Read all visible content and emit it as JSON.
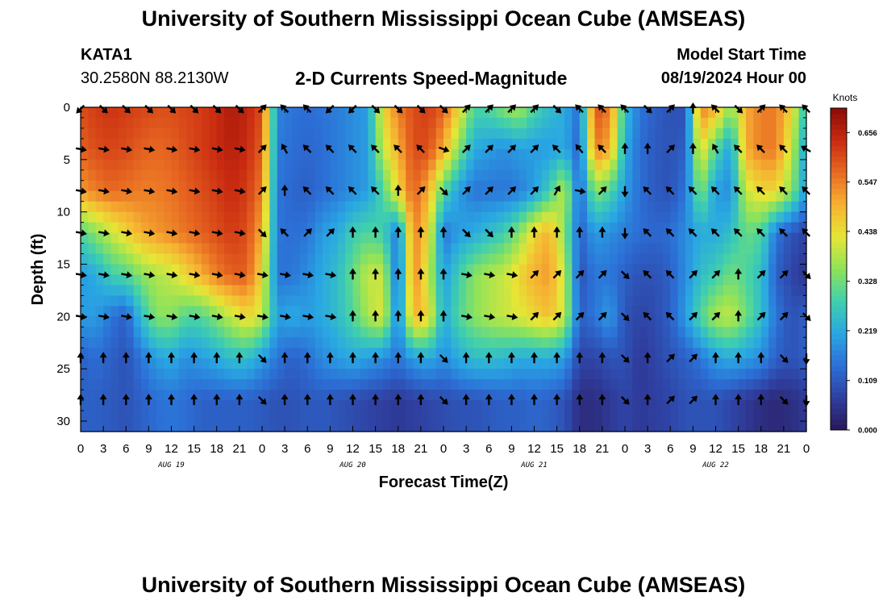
{
  "header": {
    "title_top": "University of Southern Mississippi Ocean Cube (AMSEAS)",
    "title_bottom": "University of Southern Mississippi Ocean Cube (AMSEAS)",
    "station": "KATA1",
    "coords": "30.2580N  88.2130W",
    "plot_title": "2-D Currents Speed-Magnitude",
    "model_start_label": "Model Start Time",
    "model_start_value": "08/19/2024 Hour 00"
  },
  "colors": {
    "colormap": [
      "#2a1858",
      "#2f3fa0",
      "#2c6fd6",
      "#29a7e3",
      "#3fcfae",
      "#8ee35a",
      "#e6e636",
      "#f6b232",
      "#e86a22",
      "#c92a10",
      "#8a0c06"
    ]
  },
  "chart_data": {
    "type": "heatmap",
    "title": "2-D Currents Speed-Magnitude",
    "xlabel": "Forecast Time(Z)",
    "ylabel": "Depth (ft)",
    "xlim": [
      0,
      96
    ],
    "ylim": [
      31,
      0
    ],
    "x_tick_labels": [
      "0",
      "3",
      "6",
      "9",
      "12",
      "15",
      "18",
      "21",
      "0",
      "3",
      "6",
      "9",
      "12",
      "15",
      "18",
      "21",
      "0",
      "3",
      "6",
      "9",
      "12",
      "15",
      "18",
      "21",
      "0",
      "3",
      "6",
      "9",
      "12",
      "15",
      "18",
      "21",
      "0"
    ],
    "date_labels": [
      {
        "label": "AUG 19",
        "hour": 12
      },
      {
        "label": "AUG 20",
        "hour": 36
      },
      {
        "label": "AUG 21",
        "hour": 60
      },
      {
        "label": "AUG 22",
        "hour": 84
      }
    ],
    "y_ticks": [
      0,
      5,
      10,
      15,
      20,
      25,
      30
    ],
    "y_tick_labels": [
      "0",
      "5",
      "10",
      "15",
      "20",
      "25",
      "30"
    ],
    "colorbar": {
      "label": "Knots",
      "min": 0,
      "max": 0.71,
      "tick_values": [
        0.0,
        0.109,
        0.219,
        0.328,
        0.438,
        0.547,
        0.656
      ],
      "tick_labels": [
        "0.000",
        "0.109",
        "0.219",
        "0.328",
        "0.438",
        "0.547",
        "0.656"
      ]
    },
    "depths": [
      0,
      4,
      8,
      12,
      16,
      20,
      24,
      28
    ],
    "hours": [
      0,
      2,
      4,
      6,
      8,
      10,
      12,
      14,
      16,
      18,
      20,
      22,
      24,
      26,
      28,
      30,
      32,
      34,
      36,
      38,
      40,
      42,
      44,
      46,
      48,
      50,
      52,
      54,
      56,
      58,
      60,
      62,
      64,
      66,
      68,
      70,
      72,
      74,
      76,
      78,
      80,
      82,
      84,
      86,
      88,
      90,
      92,
      94,
      96
    ],
    "speed": [
      [
        0.6,
        0.62,
        0.63,
        0.62,
        0.61,
        0.6,
        0.6,
        0.61,
        0.62,
        0.64,
        0.67,
        0.65,
        0.6,
        0.17,
        0.15,
        0.14,
        0.15,
        0.16,
        0.18,
        0.2,
        0.45,
        0.55,
        0.6,
        0.62,
        0.58,
        0.45,
        0.3,
        0.3,
        0.35,
        0.38,
        0.3,
        0.25,
        0.22,
        0.14,
        0.6,
        0.55,
        0.25,
        0.15,
        0.12,
        0.1,
        0.1,
        0.55,
        0.5,
        0.35,
        0.5,
        0.55,
        0.55,
        0.45,
        0.25
      ],
      [
        0.58,
        0.6,
        0.61,
        0.6,
        0.58,
        0.57,
        0.58,
        0.6,
        0.62,
        0.64,
        0.66,
        0.64,
        0.58,
        0.16,
        0.14,
        0.13,
        0.14,
        0.16,
        0.18,
        0.2,
        0.4,
        0.5,
        0.6,
        0.6,
        0.5,
        0.35,
        0.22,
        0.2,
        0.18,
        0.2,
        0.2,
        0.2,
        0.22,
        0.12,
        0.55,
        0.5,
        0.22,
        0.14,
        0.11,
        0.1,
        0.12,
        0.45,
        0.3,
        0.2,
        0.5,
        0.55,
        0.55,
        0.4,
        0.2
      ],
      [
        0.52,
        0.55,
        0.57,
        0.56,
        0.55,
        0.55,
        0.56,
        0.58,
        0.6,
        0.62,
        0.64,
        0.62,
        0.55,
        0.15,
        0.13,
        0.12,
        0.14,
        0.16,
        0.18,
        0.2,
        0.3,
        0.45,
        0.58,
        0.5,
        0.3,
        0.2,
        0.15,
        0.15,
        0.15,
        0.16,
        0.2,
        0.28,
        0.4,
        0.12,
        0.35,
        0.3,
        0.2,
        0.14,
        0.11,
        0.1,
        0.15,
        0.35,
        0.2,
        0.18,
        0.4,
        0.45,
        0.45,
        0.35,
        0.2
      ],
      [
        0.3,
        0.35,
        0.4,
        0.45,
        0.5,
        0.52,
        0.54,
        0.56,
        0.58,
        0.6,
        0.62,
        0.6,
        0.5,
        0.15,
        0.14,
        0.15,
        0.2,
        0.22,
        0.28,
        0.3,
        0.28,
        0.15,
        0.55,
        0.45,
        0.15,
        0.2,
        0.22,
        0.25,
        0.28,
        0.35,
        0.45,
        0.5,
        0.35,
        0.12,
        0.2,
        0.18,
        0.16,
        0.14,
        0.13,
        0.14,
        0.18,
        0.22,
        0.22,
        0.25,
        0.32,
        0.3,
        0.15,
        0.1,
        0.08
      ],
      [
        0.2,
        0.22,
        0.28,
        0.3,
        0.35,
        0.38,
        0.4,
        0.45,
        0.5,
        0.55,
        0.58,
        0.58,
        0.45,
        0.15,
        0.15,
        0.18,
        0.22,
        0.25,
        0.32,
        0.4,
        0.4,
        0.12,
        0.55,
        0.4,
        0.2,
        0.28,
        0.35,
        0.38,
        0.4,
        0.45,
        0.5,
        0.52,
        0.4,
        0.1,
        0.15,
        0.15,
        0.12,
        0.1,
        0.1,
        0.12,
        0.18,
        0.25,
        0.28,
        0.33,
        0.3,
        0.25,
        0.12,
        0.08,
        0.05
      ],
      [
        0.2,
        0.2,
        0.15,
        0.12,
        0.25,
        0.35,
        0.35,
        0.3,
        0.3,
        0.35,
        0.4,
        0.45,
        0.4,
        0.2,
        0.22,
        0.2,
        0.22,
        0.25,
        0.3,
        0.38,
        0.42,
        0.15,
        0.5,
        0.45,
        0.22,
        0.3,
        0.35,
        0.38,
        0.4,
        0.42,
        0.45,
        0.48,
        0.4,
        0.12,
        0.15,
        0.2,
        0.1,
        0.08,
        0.09,
        0.12,
        0.2,
        0.3,
        0.38,
        0.4,
        0.33,
        0.25,
        0.15,
        0.1,
        0.12
      ],
      [
        0.12,
        0.14,
        0.12,
        0.1,
        0.15,
        0.2,
        0.22,
        0.18,
        0.2,
        0.22,
        0.25,
        0.25,
        0.2,
        0.15,
        0.12,
        0.14,
        0.18,
        0.2,
        0.22,
        0.2,
        0.18,
        0.15,
        0.2,
        0.22,
        0.18,
        0.22,
        0.25,
        0.25,
        0.24,
        0.22,
        0.22,
        0.22,
        0.2,
        0.08,
        0.08,
        0.1,
        0.1,
        0.06,
        0.08,
        0.1,
        0.12,
        0.15,
        0.2,
        0.22,
        0.2,
        0.18,
        0.12,
        0.1,
        0.12
      ],
      [
        0.12,
        0.12,
        0.11,
        0.1,
        0.12,
        0.14,
        0.15,
        0.14,
        0.12,
        0.12,
        0.12,
        0.12,
        0.11,
        0.1,
        0.1,
        0.11,
        0.11,
        0.1,
        0.09,
        0.08,
        0.07,
        0.06,
        0.07,
        0.08,
        0.09,
        0.1,
        0.1,
        0.11,
        0.12,
        0.12,
        0.13,
        0.12,
        0.1,
        0.04,
        0.04,
        0.06,
        0.08,
        0.06,
        0.07,
        0.08,
        0.1,
        0.1,
        0.1,
        0.08,
        0.06,
        0.04,
        0.03,
        0.04,
        0.06
      ]
    ],
    "arrow_hours": [
      0,
      3,
      6,
      9,
      12,
      15,
      18,
      21,
      24,
      27,
      30,
      33,
      36,
      39,
      42,
      45,
      48,
      51,
      54,
      57,
      60,
      63,
      66,
      69,
      72,
      75,
      78,
      81,
      84,
      87,
      90,
      93,
      96
    ],
    "arrow_depths": [
      0,
      4,
      8,
      12,
      16,
      20,
      24,
      28
    ],
    "arrow_directions_deg": [
      [
        225,
        135,
        135,
        135,
        135,
        135,
        135,
        135,
        45,
        315,
        315,
        225,
        225,
        135,
        135,
        135,
        135,
        45,
        45,
        45,
        45,
        135,
        315,
        315,
        315,
        135,
        45,
        0,
        315,
        135,
        45,
        315,
        315
      ],
      [
        100,
        100,
        100,
        100,
        100,
        100,
        100,
        100,
        45,
        330,
        315,
        315,
        315,
        315,
        315,
        315,
        110,
        45,
        45,
        45,
        45,
        315,
        320,
        315,
        0,
        0,
        45,
        0,
        330,
        315,
        315,
        315,
        300
      ],
      [
        100,
        100,
        100,
        100,
        100,
        100,
        100,
        100,
        45,
        0,
        315,
        315,
        315,
        315,
        0,
        45,
        135,
        45,
        45,
        45,
        45,
        30,
        100,
        45,
        180,
        315,
        315,
        315,
        315,
        315,
        315,
        315,
        315
      ],
      [
        100,
        100,
        100,
        100,
        100,
        100,
        100,
        100,
        135,
        315,
        45,
        45,
        0,
        0,
        0,
        0,
        0,
        135,
        135,
        0,
        0,
        0,
        0,
        0,
        180,
        315,
        315,
        315,
        315,
        315,
        315,
        315,
        315
      ],
      [
        100,
        100,
        100,
        100,
        100,
        100,
        100,
        100,
        100,
        100,
        100,
        100,
        0,
        0,
        0,
        0,
        0,
        100,
        100,
        100,
        45,
        45,
        45,
        45,
        135,
        315,
        315,
        45,
        45,
        0,
        45,
        45,
        135
      ],
      [
        100,
        100,
        100,
        100,
        100,
        100,
        100,
        100,
        100,
        100,
        100,
        100,
        0,
        0,
        0,
        0,
        0,
        100,
        100,
        100,
        45,
        45,
        45,
        45,
        135,
        315,
        315,
        45,
        45,
        0,
        45,
        45,
        135
      ],
      [
        0,
        0,
        0,
        0,
        0,
        0,
        0,
        0,
        135,
        0,
        0,
        0,
        0,
        0,
        0,
        0,
        135,
        0,
        0,
        0,
        0,
        0,
        0,
        0,
        135,
        0,
        45,
        45,
        0,
        0,
        0,
        135,
        180
      ],
      [
        0,
        0,
        0,
        0,
        0,
        0,
        0,
        0,
        135,
        0,
        0,
        0,
        0,
        0,
        0,
        0,
        135,
        0,
        0,
        0,
        0,
        0,
        0,
        0,
        135,
        0,
        45,
        45,
        0,
        0,
        0,
        135,
        180
      ]
    ]
  }
}
